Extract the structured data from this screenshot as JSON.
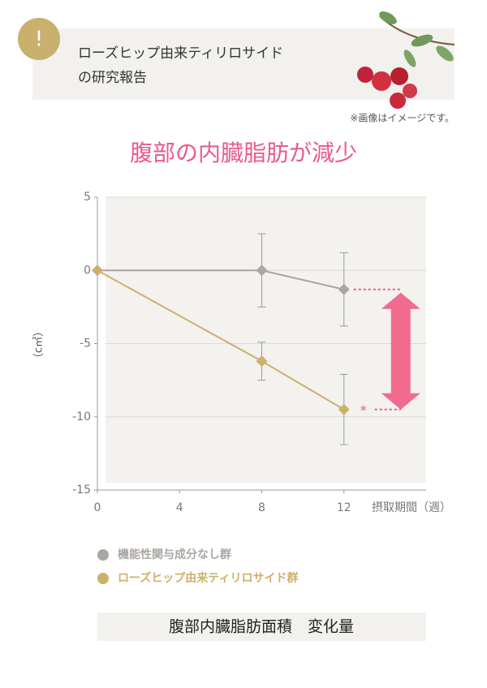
{
  "header": {
    "icon": "!",
    "lines": [
      "ローズヒップ由来ティリロサイド",
      "の研究報告"
    ],
    "note": "※画像はイメージです。"
  },
  "chart_data": {
    "type": "line",
    "title": "腹部の内臓脂肪が減少",
    "x": [
      0,
      8,
      12
    ],
    "series": [
      {
        "name": "機能性関与成分なし群",
        "color": "#aaa6a2",
        "values": [
          0,
          0,
          -1.3
        ],
        "errors": [
          null,
          2.5,
          2.5
        ]
      },
      {
        "name": "ローズヒップ由来ティリロサイド群",
        "color": "#cdb06a",
        "values": [
          0,
          -6.2,
          -9.5
        ],
        "errors": [
          null,
          1.3,
          2.4
        ]
      }
    ],
    "xlim": [
      0,
      16
    ],
    "xticks": [
      0,
      4,
      8,
      12
    ],
    "ylim": [
      -15,
      5
    ],
    "yticks": [
      5,
      0,
      -5,
      -10,
      -15
    ],
    "xlabel": "摂取期間（週）",
    "ylabel": "（c㎡）",
    "annotation": "*",
    "grid": true,
    "footer": "腹部内臓脂肪面積　変化量"
  }
}
